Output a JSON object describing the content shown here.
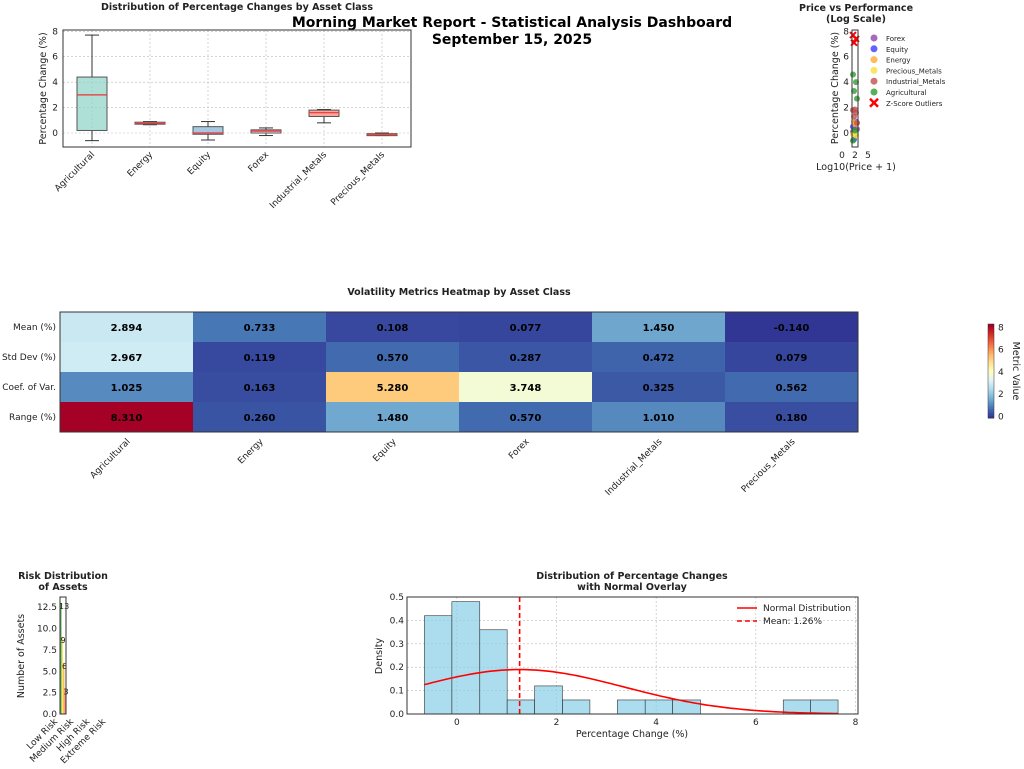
{
  "suptitle": [
    "Morning Market Report - Statistical Analysis Dashboard",
    "September 15, 2025"
  ],
  "chart_data": [
    {
      "type": "box",
      "title": "Distribution of Percentage Changes by Asset Class",
      "xlabel": "",
      "ylabel": "Percentage Change (%)",
      "ylim": [
        -1.1,
        8.1
      ],
      "yticks": [
        "0",
        "2",
        "4",
        "6",
        "8"
      ],
      "grid": true,
      "categories": [
        "Agricultural",
        "Energy",
        "Equity",
        "Forex",
        "Industrial_Metals",
        "Precious_Metals"
      ],
      "boxes": [
        {
          "whislo": -0.6,
          "q1": 0.2,
          "med": 3.0,
          "q3": 4.4,
          "whishi": 7.7,
          "color": "#8dd3c7"
        },
        {
          "whislo": 0.65,
          "q1": 0.7,
          "med": 0.75,
          "q3": 0.85,
          "whishi": 0.9,
          "color": "#bebada"
        },
        {
          "whislo": -0.55,
          "q1": -0.1,
          "med": 0.0,
          "q3": 0.5,
          "whishi": 0.9,
          "color": "#80b1d3"
        },
        {
          "whislo": -0.2,
          "q1": 0.0,
          "med": 0.15,
          "q3": 0.25,
          "whishi": 0.4,
          "color": "#fccde5"
        },
        {
          "whislo": 0.8,
          "q1": 1.3,
          "med": 1.6,
          "q3": 1.8,
          "whishi": 1.85,
          "color": "#fb8072"
        },
        {
          "whislo": -0.2,
          "q1": -0.15,
          "med": -0.1,
          "q3": -0.05,
          "whishi": 0.0,
          "color": "#fb8072"
        }
      ]
    },
    {
      "type": "scatter",
      "title": "Price vs Performance\n(Log Scale)",
      "xlabel": "Log10(Price + 1)",
      "ylabel": "Percentage Change (%)",
      "xticks": [
        "0",
        "2",
        "5"
      ],
      "yticks": [
        "0",
        "2",
        "4",
        "6",
        "8"
      ],
      "ylim": [
        -1.1,
        8.1
      ],
      "legend": "right",
      "series": [
        {
          "name": "Forex",
          "color": "#8e44ad",
          "y": [
            0.1,
            0.2,
            0.3,
            0.0
          ]
        },
        {
          "name": "Equity",
          "color": "#3b3bff",
          "y": [
            -0.5,
            0.9,
            0.5,
            -0.1
          ]
        },
        {
          "name": "Energy",
          "color": "#ffaa33",
          "y": [
            0.7,
            0.8,
            0.9
          ]
        },
        {
          "name": "Precious_Metals",
          "color": "#f5e23c",
          "y": [
            -0.2,
            -0.1,
            0.0
          ]
        },
        {
          "name": "Industrial_Metals",
          "color": "#c0504d",
          "y": [
            0.8,
            1.3,
            1.6,
            1.8,
            1.85
          ]
        },
        {
          "name": "Agricultural",
          "color": "#2e9c2e",
          "y": [
            -0.6,
            0.2,
            2.7,
            3.3,
            4.0,
            4.6
          ]
        },
        {
          "name": "Z-Score Outliers",
          "color": "#ff0000",
          "marker": "x",
          "y": [
            7.1,
            7.4,
            7.7
          ]
        }
      ]
    },
    {
      "type": "heatmap",
      "title": "Volatility Metrics Heatmap by Asset Class",
      "rows": [
        "Mean (%)",
        "Std Dev (%)",
        "Coef. of Var.",
        "Range (%)"
      ],
      "columns": [
        "Agricultural",
        "Energy",
        "Equity",
        "Forex",
        "Industrial_Metals",
        "Precious_Metals"
      ],
      "values": [
        [
          2.894,
          0.733,
          0.108,
          0.077,
          1.45,
          -0.14
        ],
        [
          2.967,
          0.119,
          0.57,
          0.287,
          0.472,
          0.079
        ],
        [
          1.025,
          0.163,
          5.28,
          3.748,
          0.325,
          0.562
        ],
        [
          8.31,
          0.26,
          1.48,
          0.57,
          1.01,
          0.18
        ]
      ],
      "colormap": "RdYlBu_r",
      "vmin": -0.14,
      "vmax": 8.31,
      "colorbar_label": "Metric Value",
      "colorbar_ticks": [
        "0",
        "2",
        "4",
        "6",
        "8"
      ]
    },
    {
      "type": "bar",
      "title": "Risk Distribution\nof Assets",
      "ylabel": "Number of Assets",
      "yticks": [
        "0.0",
        "2.5",
        "5.0",
        "7.5",
        "10.0",
        "12.5"
      ],
      "ylim": [
        0,
        13.7
      ],
      "categories": [
        "Low Risk",
        "Medium Risk",
        "High Risk",
        "Extreme Risk"
      ],
      "values": [
        13,
        9,
        6,
        3
      ],
      "colors": [
        "#2e9c2e",
        "#f5e23c",
        "#ffaa33",
        "#ff6b6b"
      ]
    },
    {
      "type": "histogram",
      "title": "Distribution of Percentage Changes\nwith Normal Overlay",
      "xlabel": "Percentage Change (%)",
      "ylabel": "Density",
      "xlim": [
        -1.0,
        8.05
      ],
      "ylim": [
        0,
        0.5
      ],
      "xticks": [
        "0",
        "2",
        "4",
        "6",
        "8"
      ],
      "yticks": [
        "0.0",
        "0.1",
        "0.2",
        "0.3",
        "0.4",
        "0.5"
      ],
      "bin_edges": [
        -0.65,
        -0.1,
        0.46,
        1.01,
        1.56,
        2.12,
        2.67,
        3.22,
        3.78,
        4.33,
        4.89,
        5.44,
        5.99,
        6.55,
        7.1,
        7.65
      ],
      "density": [
        0.42,
        0.48,
        0.36,
        0.06,
        0.12,
        0.06,
        0,
        0.06,
        0.06,
        0.06,
        0,
        0,
        0,
        0.06,
        0.06
      ],
      "normal": {
        "mean": 1.26,
        "std": 2.1
      },
      "legend": "top-right",
      "legend_entries": [
        "Normal Distribution",
        "Mean: 1.26%"
      ]
    }
  ]
}
